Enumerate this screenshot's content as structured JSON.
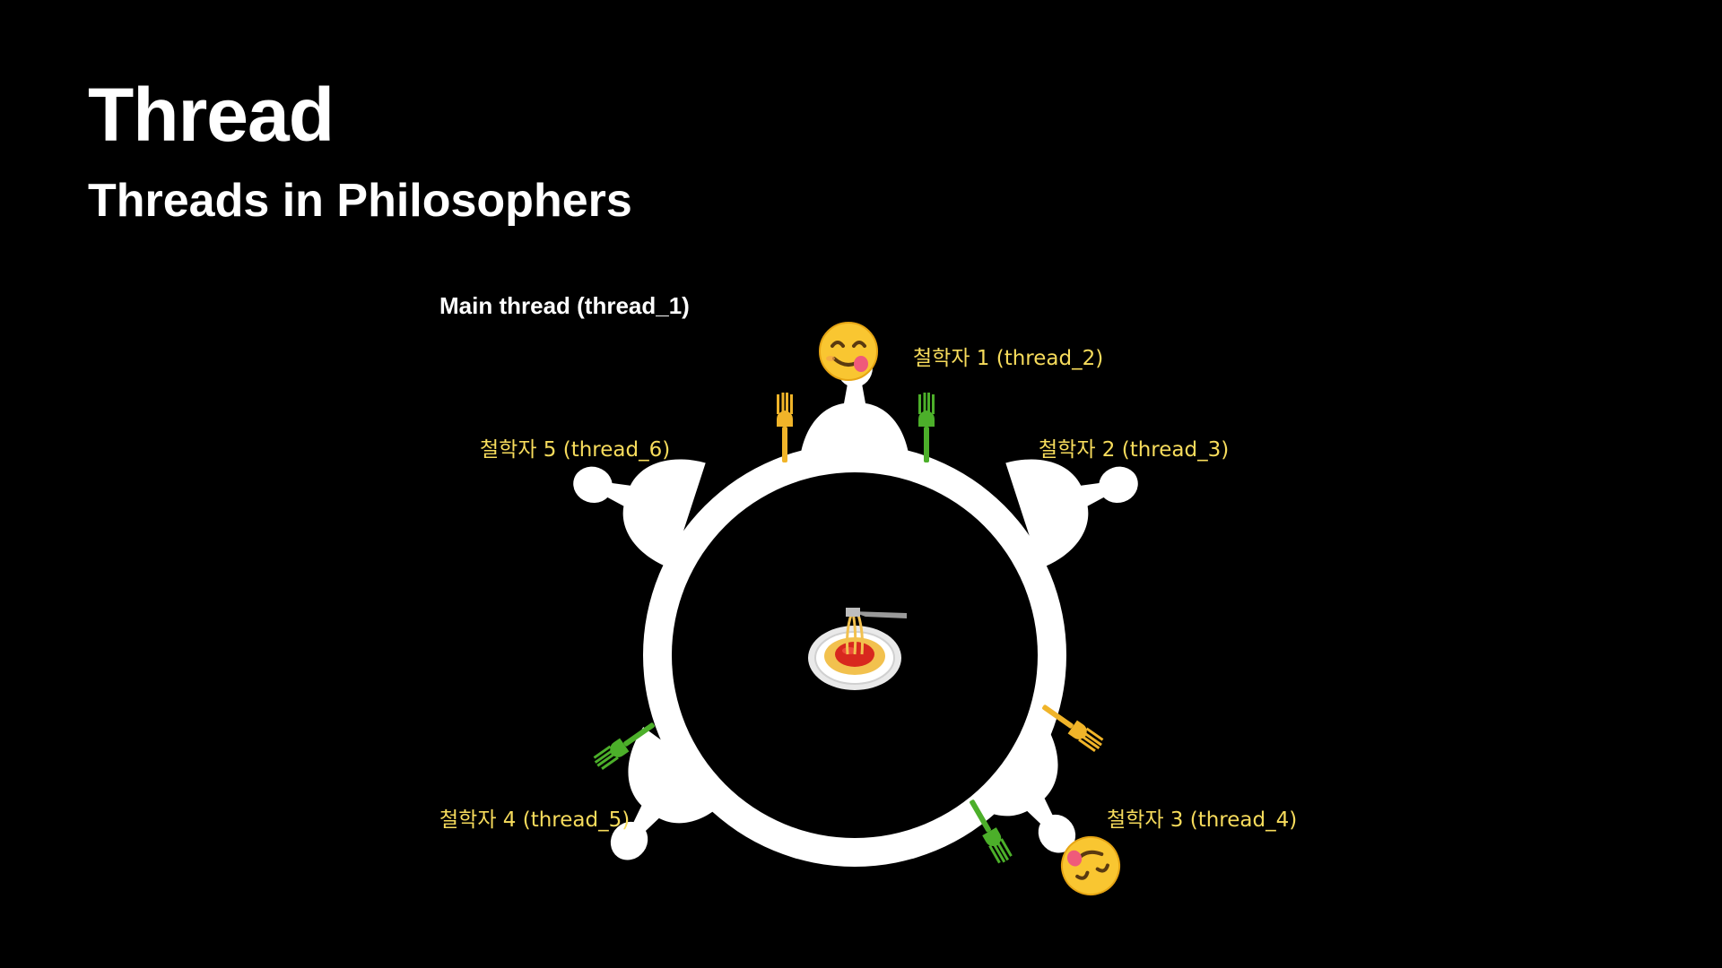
{
  "slide": {
    "title": "Thread",
    "subtitle": "Threads in Philosophers"
  },
  "diagram": {
    "main_label": "Main thread (thread_1)",
    "philosophers": [
      {
        "label": "철학자 1 (thread_2)",
        "state": "eating"
      },
      {
        "label": "철학자 2 (thread_3)",
        "state": "waiting"
      },
      {
        "label": "철학자 3 (thread_4)",
        "state": "eating"
      },
      {
        "label": "철학자 4 (thread_5)",
        "state": "waiting"
      },
      {
        "label": "철학자 5 (thread_6)",
        "state": "waiting"
      }
    ],
    "forks": [
      {
        "color": "#f0b429"
      },
      {
        "color": "#4caf2a"
      },
      {
        "color": "#f0b429"
      },
      {
        "color": "#4caf2a"
      },
      {
        "color": "#4caf2a"
      }
    ],
    "center_item": "spaghetti-icon",
    "colors": {
      "background": "#000000",
      "table": "#ffffff",
      "label_text": "#f7dc5c",
      "fork_yellow": "#f0b429",
      "fork_green": "#4caf2a"
    }
  }
}
